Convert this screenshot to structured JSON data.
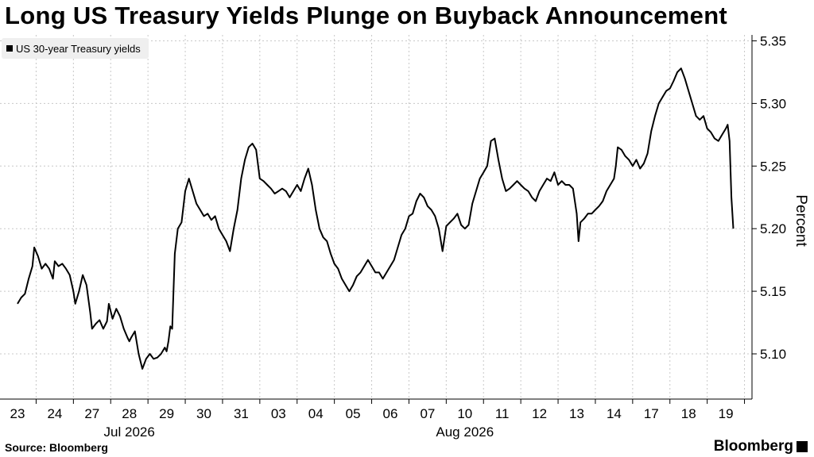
{
  "header": {
    "title": "Long US Treasury Yields Plunge on Buyback Announcement"
  },
  "footer": {
    "source": "Source: Bloomberg",
    "brand": "Bloomberg"
  },
  "chart_data": {
    "type": "line",
    "title": "Long US Treasury Yields Plunge on Buyback Announcement",
    "ylabel": "Percent",
    "xlabel": "",
    "ylim": [
      5.06,
      5.36
    ],
    "yticks": [
      5.1,
      5.15,
      5.2,
      5.25,
      5.3,
      5.35
    ],
    "ytick_labels": [
      "5.10",
      "5.15",
      "5.20",
      "5.25",
      "5.30",
      "5.35"
    ],
    "grid": true,
    "legend_position": "top-left",
    "days": [
      "23",
      "24",
      "27",
      "28",
      "29",
      "30",
      "31",
      "03",
      "04",
      "05",
      "06",
      "07",
      "10",
      "11",
      "12",
      "13",
      "14",
      "17",
      "18",
      "19"
    ],
    "month_labels": [
      {
        "label": "Jul 2026",
        "day_index": 3
      },
      {
        "label": "Aug 2026",
        "day_index": 12
      }
    ],
    "series": [
      {
        "name": "US 30-year Treasury yields",
        "color": "#000000",
        "points": [
          [
            0.0,
            5.14
          ],
          [
            0.1,
            5.145
          ],
          [
            0.2,
            5.148
          ],
          [
            0.3,
            5.16
          ],
          [
            0.4,
            5.17
          ],
          [
            0.45,
            5.185
          ],
          [
            0.55,
            5.178
          ],
          [
            0.65,
            5.168
          ],
          [
            0.75,
            5.172
          ],
          [
            0.85,
            5.168
          ],
          [
            0.95,
            5.16
          ],
          [
            1.0,
            5.174
          ],
          [
            1.1,
            5.17
          ],
          [
            1.2,
            5.172
          ],
          [
            1.3,
            5.168
          ],
          [
            1.4,
            5.163
          ],
          [
            1.5,
            5.15
          ],
          [
            1.55,
            5.14
          ],
          [
            1.65,
            5.15
          ],
          [
            1.75,
            5.163
          ],
          [
            1.85,
            5.155
          ],
          [
            1.95,
            5.133
          ],
          [
            2.0,
            5.12
          ],
          [
            2.1,
            5.124
          ],
          [
            2.2,
            5.127
          ],
          [
            2.3,
            5.12
          ],
          [
            2.4,
            5.126
          ],
          [
            2.45,
            5.14
          ],
          [
            2.55,
            5.128
          ],
          [
            2.65,
            5.136
          ],
          [
            2.75,
            5.13
          ],
          [
            2.85,
            5.12
          ],
          [
            2.95,
            5.113
          ],
          [
            3.0,
            5.11
          ],
          [
            3.05,
            5.113
          ],
          [
            3.15,
            5.118
          ],
          [
            3.25,
            5.1
          ],
          [
            3.35,
            5.088
          ],
          [
            3.45,
            5.096
          ],
          [
            3.55,
            5.1
          ],
          [
            3.65,
            5.096
          ],
          [
            3.75,
            5.097
          ],
          [
            3.85,
            5.1
          ],
          [
            3.95,
            5.105
          ],
          [
            4.0,
            5.102
          ],
          [
            4.05,
            5.11
          ],
          [
            4.1,
            5.122
          ],
          [
            4.15,
            5.12
          ],
          [
            4.22,
            5.18
          ],
          [
            4.3,
            5.2
          ],
          [
            4.4,
            5.205
          ],
          [
            4.5,
            5.23
          ],
          [
            4.6,
            5.24
          ],
          [
            4.7,
            5.23
          ],
          [
            4.8,
            5.22
          ],
          [
            4.9,
            5.215
          ],
          [
            5.0,
            5.21
          ],
          [
            5.1,
            5.212
          ],
          [
            5.2,
            5.207
          ],
          [
            5.3,
            5.21
          ],
          [
            5.4,
            5.2
          ],
          [
            5.5,
            5.195
          ],
          [
            5.6,
            5.19
          ],
          [
            5.7,
            5.182
          ],
          [
            5.8,
            5.2
          ],
          [
            5.9,
            5.215
          ],
          [
            6.0,
            5.24
          ],
          [
            6.1,
            5.255
          ],
          [
            6.2,
            5.265
          ],
          [
            6.3,
            5.268
          ],
          [
            6.4,
            5.263
          ],
          [
            6.5,
            5.24
          ],
          [
            6.6,
            5.238
          ],
          [
            6.7,
            5.235
          ],
          [
            6.8,
            5.232
          ],
          [
            6.9,
            5.228
          ],
          [
            7.0,
            5.23
          ],
          [
            7.1,
            5.232
          ],
          [
            7.2,
            5.23
          ],
          [
            7.3,
            5.225
          ],
          [
            7.4,
            5.23
          ],
          [
            7.5,
            5.235
          ],
          [
            7.6,
            5.23
          ],
          [
            7.7,
            5.24
          ],
          [
            7.8,
            5.248
          ],
          [
            7.9,
            5.235
          ],
          [
            8.0,
            5.215
          ],
          [
            8.1,
            5.2
          ],
          [
            8.2,
            5.193
          ],
          [
            8.3,
            5.19
          ],
          [
            8.4,
            5.18
          ],
          [
            8.5,
            5.172
          ],
          [
            8.6,
            5.168
          ],
          [
            8.7,
            5.16
          ],
          [
            8.8,
            5.155
          ],
          [
            8.9,
            5.15
          ],
          [
            9.0,
            5.155
          ],
          [
            9.1,
            5.162
          ],
          [
            9.2,
            5.165
          ],
          [
            9.3,
            5.17
          ],
          [
            9.4,
            5.175
          ],
          [
            9.5,
            5.17
          ],
          [
            9.6,
            5.165
          ],
          [
            9.7,
            5.165
          ],
          [
            9.8,
            5.16
          ],
          [
            9.9,
            5.165
          ],
          [
            10.0,
            5.17
          ],
          [
            10.1,
            5.175
          ],
          [
            10.2,
            5.185
          ],
          [
            10.3,
            5.195
          ],
          [
            10.4,
            5.2
          ],
          [
            10.5,
            5.21
          ],
          [
            10.6,
            5.212
          ],
          [
            10.7,
            5.222
          ],
          [
            10.8,
            5.228
          ],
          [
            10.9,
            5.225
          ],
          [
            11.0,
            5.218
          ],
          [
            11.1,
            5.215
          ],
          [
            11.2,
            5.21
          ],
          [
            11.3,
            5.2
          ],
          [
            11.4,
            5.182
          ],
          [
            11.5,
            5.202
          ],
          [
            11.6,
            5.205
          ],
          [
            11.7,
            5.208
          ],
          [
            11.8,
            5.212
          ],
          [
            11.9,
            5.203
          ],
          [
            12.0,
            5.2
          ],
          [
            12.1,
            5.203
          ],
          [
            12.2,
            5.22
          ],
          [
            12.3,
            5.23
          ],
          [
            12.4,
            5.24
          ],
          [
            12.5,
            5.245
          ],
          [
            12.6,
            5.25
          ],
          [
            12.7,
            5.27
          ],
          [
            12.8,
            5.272
          ],
          [
            12.9,
            5.255
          ],
          [
            13.0,
            5.24
          ],
          [
            13.1,
            5.23
          ],
          [
            13.2,
            5.232
          ],
          [
            13.3,
            5.235
          ],
          [
            13.4,
            5.238
          ],
          [
            13.5,
            5.235
          ],
          [
            13.6,
            5.232
          ],
          [
            13.7,
            5.23
          ],
          [
            13.8,
            5.225
          ],
          [
            13.9,
            5.222
          ],
          [
            14.0,
            5.23
          ],
          [
            14.1,
            5.235
          ],
          [
            14.2,
            5.24
          ],
          [
            14.3,
            5.238
          ],
          [
            14.4,
            5.245
          ],
          [
            14.5,
            5.235
          ],
          [
            14.6,
            5.238
          ],
          [
            14.7,
            5.235
          ],
          [
            14.8,
            5.235
          ],
          [
            14.9,
            5.232
          ],
          [
            15.0,
            5.212
          ],
          [
            15.05,
            5.19
          ],
          [
            15.1,
            5.205
          ],
          [
            15.2,
            5.208
          ],
          [
            15.3,
            5.212
          ],
          [
            15.4,
            5.212
          ],
          [
            15.5,
            5.215
          ],
          [
            15.6,
            5.218
          ],
          [
            15.7,
            5.222
          ],
          [
            15.8,
            5.23
          ],
          [
            15.9,
            5.235
          ],
          [
            16.0,
            5.24
          ],
          [
            16.05,
            5.25
          ],
          [
            16.1,
            5.265
          ],
          [
            16.2,
            5.263
          ],
          [
            16.3,
            5.258
          ],
          [
            16.4,
            5.255
          ],
          [
            16.5,
            5.25
          ],
          [
            16.6,
            5.255
          ],
          [
            16.7,
            5.248
          ],
          [
            16.8,
            5.252
          ],
          [
            16.9,
            5.26
          ],
          [
            17.0,
            5.278
          ],
          [
            17.1,
            5.29
          ],
          [
            17.2,
            5.3
          ],
          [
            17.3,
            5.305
          ],
          [
            17.4,
            5.31
          ],
          [
            17.5,
            5.312
          ],
          [
            17.6,
            5.318
          ],
          [
            17.7,
            5.325
          ],
          [
            17.8,
            5.328
          ],
          [
            17.9,
            5.32
          ],
          [
            18.0,
            5.31
          ],
          [
            18.1,
            5.3
          ],
          [
            18.2,
            5.29
          ],
          [
            18.3,
            5.287
          ],
          [
            18.4,
            5.29
          ],
          [
            18.5,
            5.28
          ],
          [
            18.6,
            5.277
          ],
          [
            18.7,
            5.272
          ],
          [
            18.8,
            5.27
          ],
          [
            18.9,
            5.275
          ],
          [
            19.0,
            5.28
          ],
          [
            19.05,
            5.283
          ],
          [
            19.1,
            5.27
          ],
          [
            19.15,
            5.225
          ],
          [
            19.2,
            5.2
          ]
        ]
      }
    ]
  }
}
